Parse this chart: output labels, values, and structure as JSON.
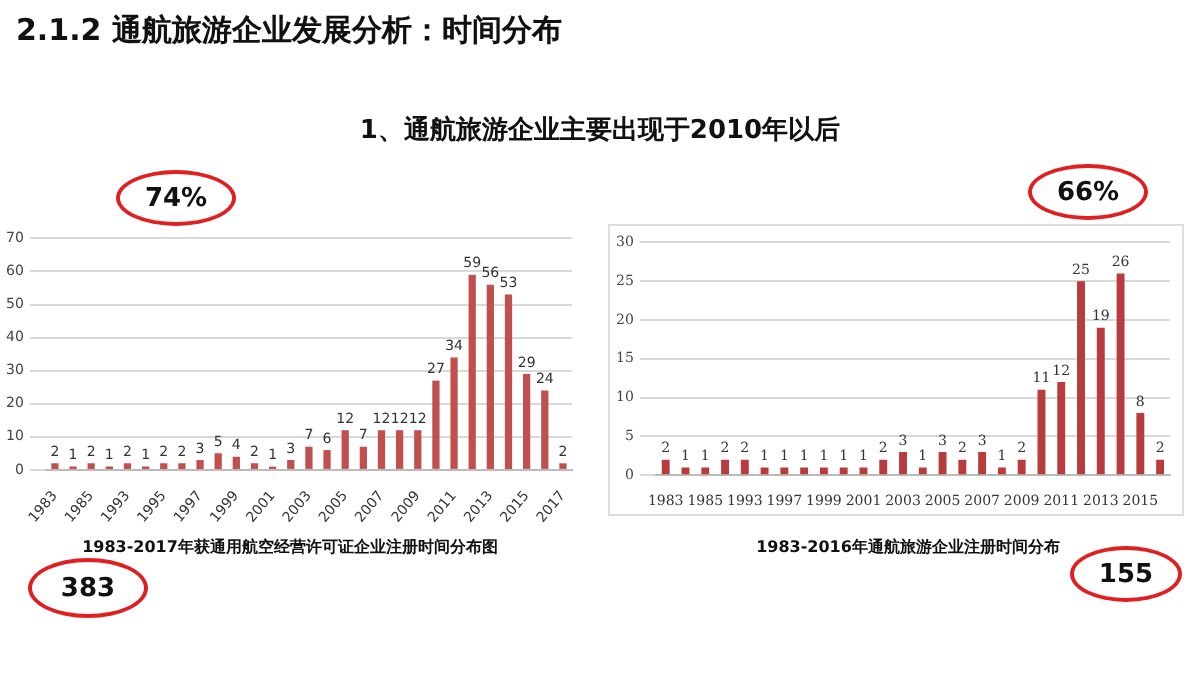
{
  "chart_data": [
    {
      "type": "bar",
      "title": "1983-2017年获通用航空经营许可证企业注册时间分布图",
      "annotations": [
        "2.1.2  通航旅游企业发展分析：时间分布",
        "1、通航旅游企业主要出现于2010年以后",
        "74%",
        "383"
      ],
      "categories": [
        "1983",
        null,
        "1985",
        null,
        "1993",
        null,
        "1995",
        null,
        "1997",
        null,
        "1999",
        null,
        "2001",
        null,
        "2003",
        null,
        "2005",
        null,
        "2007",
        null,
        "2009",
        null,
        "2011",
        null,
        "2013",
        null,
        "2015",
        null,
        "2017"
      ],
      "values": [
        2,
        1,
        2,
        1,
        2,
        1,
        2,
        2,
        3,
        5,
        4,
        2,
        1,
        3,
        7,
        6,
        12,
        7,
        12,
        12,
        12,
        27,
        34,
        59,
        56,
        53,
        29,
        24,
        2
      ],
      "color": "#c0504d",
      "ylim": [
        0,
        70
      ],
      "yticks": [
        0,
        10,
        20,
        30,
        40,
        50,
        60,
        70
      ],
      "grid": "y",
      "data_labels": true
    },
    {
      "type": "bar",
      "title": "1983-2016年通航旅游企业注册时间分布",
      "annotations": [
        "66%",
        "155"
      ],
      "categories": [
        "1983",
        null,
        "1985",
        null,
        "1993",
        null,
        "1997",
        null,
        "1999",
        null,
        "2001",
        null,
        "2003",
        null,
        "2005",
        null,
        "2007",
        null,
        "2009",
        null,
        "2011",
        null,
        "2013",
        null,
        "2015",
        null
      ],
      "values": [
        2,
        1,
        1,
        2,
        2,
        1,
        1,
        1,
        1,
        1,
        1,
        2,
        3,
        1,
        3,
        2,
        3,
        1,
        2,
        11,
        12,
        25,
        19,
        26,
        8,
        2
      ],
      "color": "#b83b3e",
      "ylim": [
        0,
        30
      ],
      "yticks": [
        0,
        5,
        10,
        15,
        20,
        25,
        30
      ],
      "grid": "y",
      "data_labels": true
    }
  ]
}
